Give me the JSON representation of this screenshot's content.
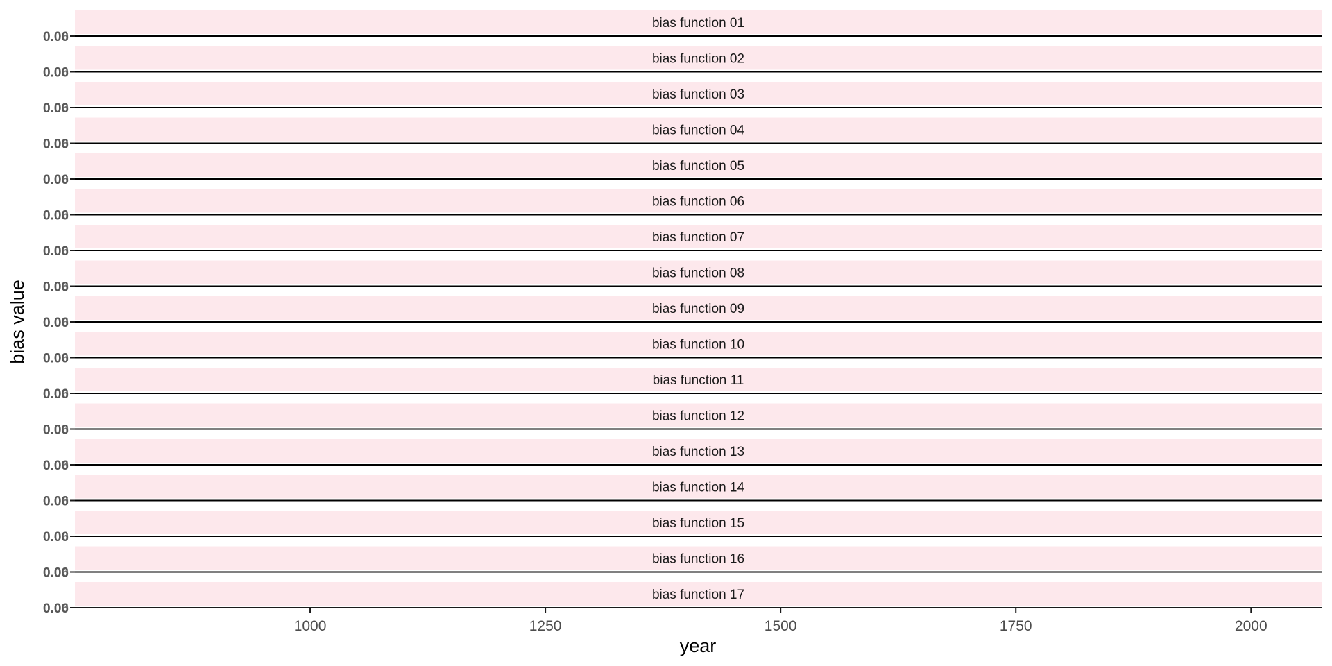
{
  "chart_data": {
    "type": "line",
    "layout": "facet-grid",
    "xlabel": "year",
    "ylabel": "bias value",
    "xlim": [
      750,
      2075
    ],
    "ylim": [
      0,
      0.06
    ],
    "x_ticks": [
      1000,
      1250,
      1500,
      1750,
      2000
    ],
    "x_tick_labels": [
      "1000",
      "1250",
      "1500",
      "1750",
      "2000"
    ],
    "y_ticks_overlaid": [
      "0.00",
      "0.06"
    ],
    "grid": false,
    "colors": {
      "strip": "#fde8ec",
      "line": "#000000",
      "axis": "#1a1a1a",
      "tick_text": "#4d4d4d"
    },
    "panels": [
      {
        "label": "bias function 01",
        "x": [
          750,
          2075
        ],
        "y": [
          0,
          0
        ]
      },
      {
        "label": "bias function 02",
        "x": [
          750,
          2075
        ],
        "y": [
          0,
          0
        ]
      },
      {
        "label": "bias function 03",
        "x": [
          750,
          2075
        ],
        "y": [
          0,
          0
        ]
      },
      {
        "label": "bias function 04",
        "x": [
          750,
          2075
        ],
        "y": [
          0,
          0
        ]
      },
      {
        "label": "bias function 05",
        "x": [
          750,
          2075
        ],
        "y": [
          0,
          0
        ]
      },
      {
        "label": "bias function 06",
        "x": [
          750,
          2075
        ],
        "y": [
          0,
          0
        ]
      },
      {
        "label": "bias function 07",
        "x": [
          750,
          2075
        ],
        "y": [
          0,
          0
        ]
      },
      {
        "label": "bias function 08",
        "x": [
          750,
          2075
        ],
        "y": [
          0,
          0
        ]
      },
      {
        "label": "bias function 09",
        "x": [
          750,
          2075
        ],
        "y": [
          0,
          0
        ]
      },
      {
        "label": "bias function 10",
        "x": [
          750,
          2075
        ],
        "y": [
          0,
          0
        ]
      },
      {
        "label": "bias function 11",
        "x": [
          750,
          2075
        ],
        "y": [
          0,
          0
        ]
      },
      {
        "label": "bias function 12",
        "x": [
          750,
          2075
        ],
        "y": [
          0,
          0
        ]
      },
      {
        "label": "bias function 13",
        "x": [
          750,
          2075
        ],
        "y": [
          0,
          0
        ]
      },
      {
        "label": "bias function 14",
        "x": [
          750,
          2075
        ],
        "y": [
          0,
          0
        ]
      },
      {
        "label": "bias function 15",
        "x": [
          750,
          2075
        ],
        "y": [
          0,
          0
        ]
      },
      {
        "label": "bias function 16",
        "x": [
          750,
          2075
        ],
        "y": [
          0,
          0
        ]
      },
      {
        "label": "bias function 17",
        "x": [
          750,
          2075
        ],
        "y": [
          0,
          0
        ]
      }
    ]
  }
}
